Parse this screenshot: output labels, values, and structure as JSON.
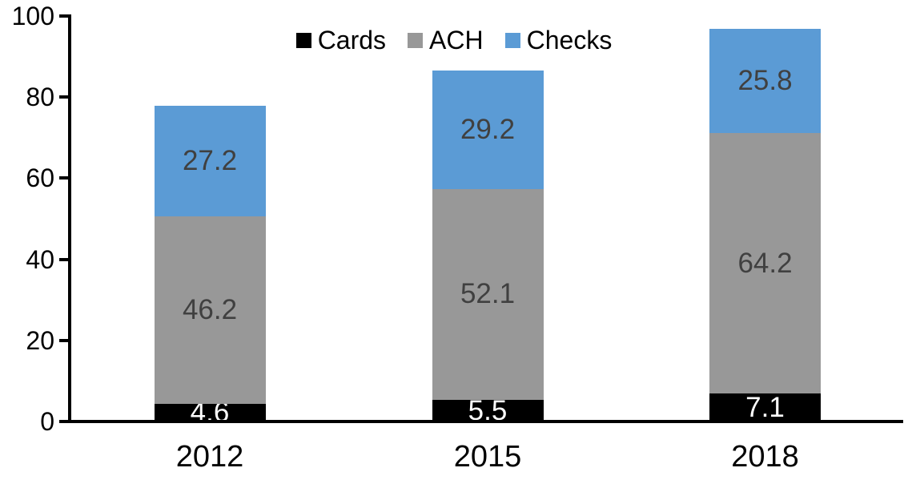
{
  "chart_data": {
    "type": "bar",
    "stacked": true,
    "title": "",
    "xlabel": "",
    "ylabel": "",
    "categories": [
      "2012",
      "2015",
      "2018"
    ],
    "series": [
      {
        "name": "Cards",
        "color": "#000000",
        "label_color": "#FFFFFF",
        "values": [
          4.6,
          5.5,
          7.1
        ]
      },
      {
        "name": "ACH",
        "color": "#989898",
        "label_color": "#404040",
        "values": [
          46.2,
          52.1,
          64.2
        ]
      },
      {
        "name": "Checks",
        "color": "#5B9BD5",
        "label_color": "#404040",
        "values": [
          27.2,
          29.2,
          25.8
        ]
      }
    ],
    "ylim": [
      0,
      100
    ],
    "yticks": [
      0,
      20,
      40,
      60,
      80,
      100
    ],
    "grid": false,
    "legend_position": "top-center",
    "axis_color": "#000000"
  }
}
